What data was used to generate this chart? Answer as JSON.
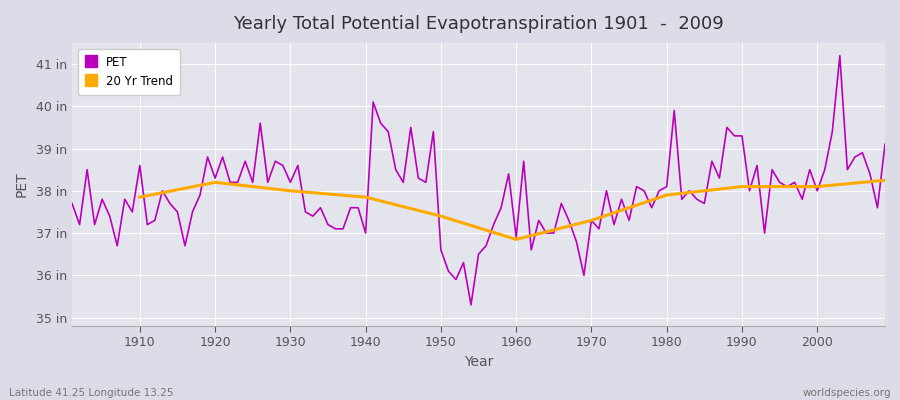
{
  "title": "Yearly Total Potential Evapotranspiration 1901  -  2009",
  "xlabel": "Year",
  "ylabel": "PET",
  "subtitle_left": "Latitude 41.25 Longitude 13.25",
  "subtitle_right": "worldspecies.org",
  "pet_color": "#bb00bb",
  "trend_color": "#ffaa00",
  "fig_bg_color": "#dcdce8",
  "plot_bg_color": "#e4e4ec",
  "ylim_min": 34.8,
  "ylim_max": 41.5,
  "ytick_labels": [
    "35 in",
    "36 in",
    "37 in",
    "38 in",
    "39 in",
    "40 in",
    "41 in"
  ],
  "ytick_values": [
    35,
    36,
    37,
    38,
    39,
    40,
    41
  ],
  "years": [
    1901,
    1902,
    1903,
    1904,
    1905,
    1906,
    1907,
    1908,
    1909,
    1910,
    1911,
    1912,
    1913,
    1914,
    1915,
    1916,
    1917,
    1918,
    1919,
    1920,
    1921,
    1922,
    1923,
    1924,
    1925,
    1926,
    1927,
    1928,
    1929,
    1930,
    1931,
    1932,
    1933,
    1934,
    1935,
    1936,
    1937,
    1938,
    1939,
    1940,
    1941,
    1942,
    1943,
    1944,
    1945,
    1946,
    1947,
    1948,
    1949,
    1950,
    1951,
    1952,
    1953,
    1954,
    1955,
    1956,
    1957,
    1958,
    1959,
    1960,
    1961,
    1962,
    1963,
    1964,
    1965,
    1966,
    1967,
    1968,
    1969,
    1970,
    1971,
    1972,
    1973,
    1974,
    1975,
    1976,
    1977,
    1978,
    1979,
    1980,
    1981,
    1982,
    1983,
    1984,
    1985,
    1986,
    1987,
    1988,
    1989,
    1990,
    1991,
    1992,
    1993,
    1994,
    1995,
    1996,
    1997,
    1998,
    1999,
    2000,
    2001,
    2002,
    2003,
    2004,
    2005,
    2006,
    2007,
    2008,
    2009
  ],
  "pet_values": [
    37.7,
    37.2,
    38.5,
    37.2,
    37.8,
    37.4,
    36.7,
    37.8,
    37.5,
    38.6,
    37.2,
    37.3,
    38.0,
    37.7,
    37.5,
    36.7,
    37.5,
    37.9,
    38.8,
    38.3,
    38.8,
    38.2,
    38.2,
    38.7,
    38.2,
    39.6,
    38.2,
    38.7,
    38.6,
    38.2,
    38.6,
    37.5,
    37.4,
    37.6,
    37.2,
    37.1,
    37.1,
    37.6,
    37.6,
    37.0,
    40.1,
    39.6,
    39.4,
    38.5,
    38.2,
    39.5,
    38.3,
    38.2,
    39.4,
    36.6,
    36.1,
    35.9,
    36.3,
    35.3,
    36.5,
    36.7,
    37.2,
    37.6,
    38.4,
    36.9,
    38.7,
    36.6,
    37.3,
    37.0,
    37.0,
    37.7,
    37.3,
    36.8,
    36.0,
    37.3,
    37.1,
    38.0,
    37.2,
    37.8,
    37.3,
    38.1,
    38.0,
    37.6,
    38.0,
    38.1,
    39.9,
    37.8,
    38.0,
    37.8,
    37.7,
    38.7,
    38.3,
    39.5,
    39.3,
    39.3,
    38.0,
    38.6,
    37.0,
    38.5,
    38.2,
    38.1,
    38.2,
    37.8,
    38.5,
    38.0,
    38.5,
    39.4,
    41.2,
    38.5,
    38.8,
    38.9,
    38.4,
    37.6,
    39.1
  ],
  "trend_years": [
    1910,
    1920,
    1930,
    1940,
    1950,
    1960,
    1970,
    1980,
    1990,
    2000,
    2009
  ],
  "trend_values": [
    37.85,
    38.2,
    38.0,
    37.85,
    37.4,
    36.85,
    37.3,
    37.9,
    38.1,
    38.1,
    38.25
  ]
}
